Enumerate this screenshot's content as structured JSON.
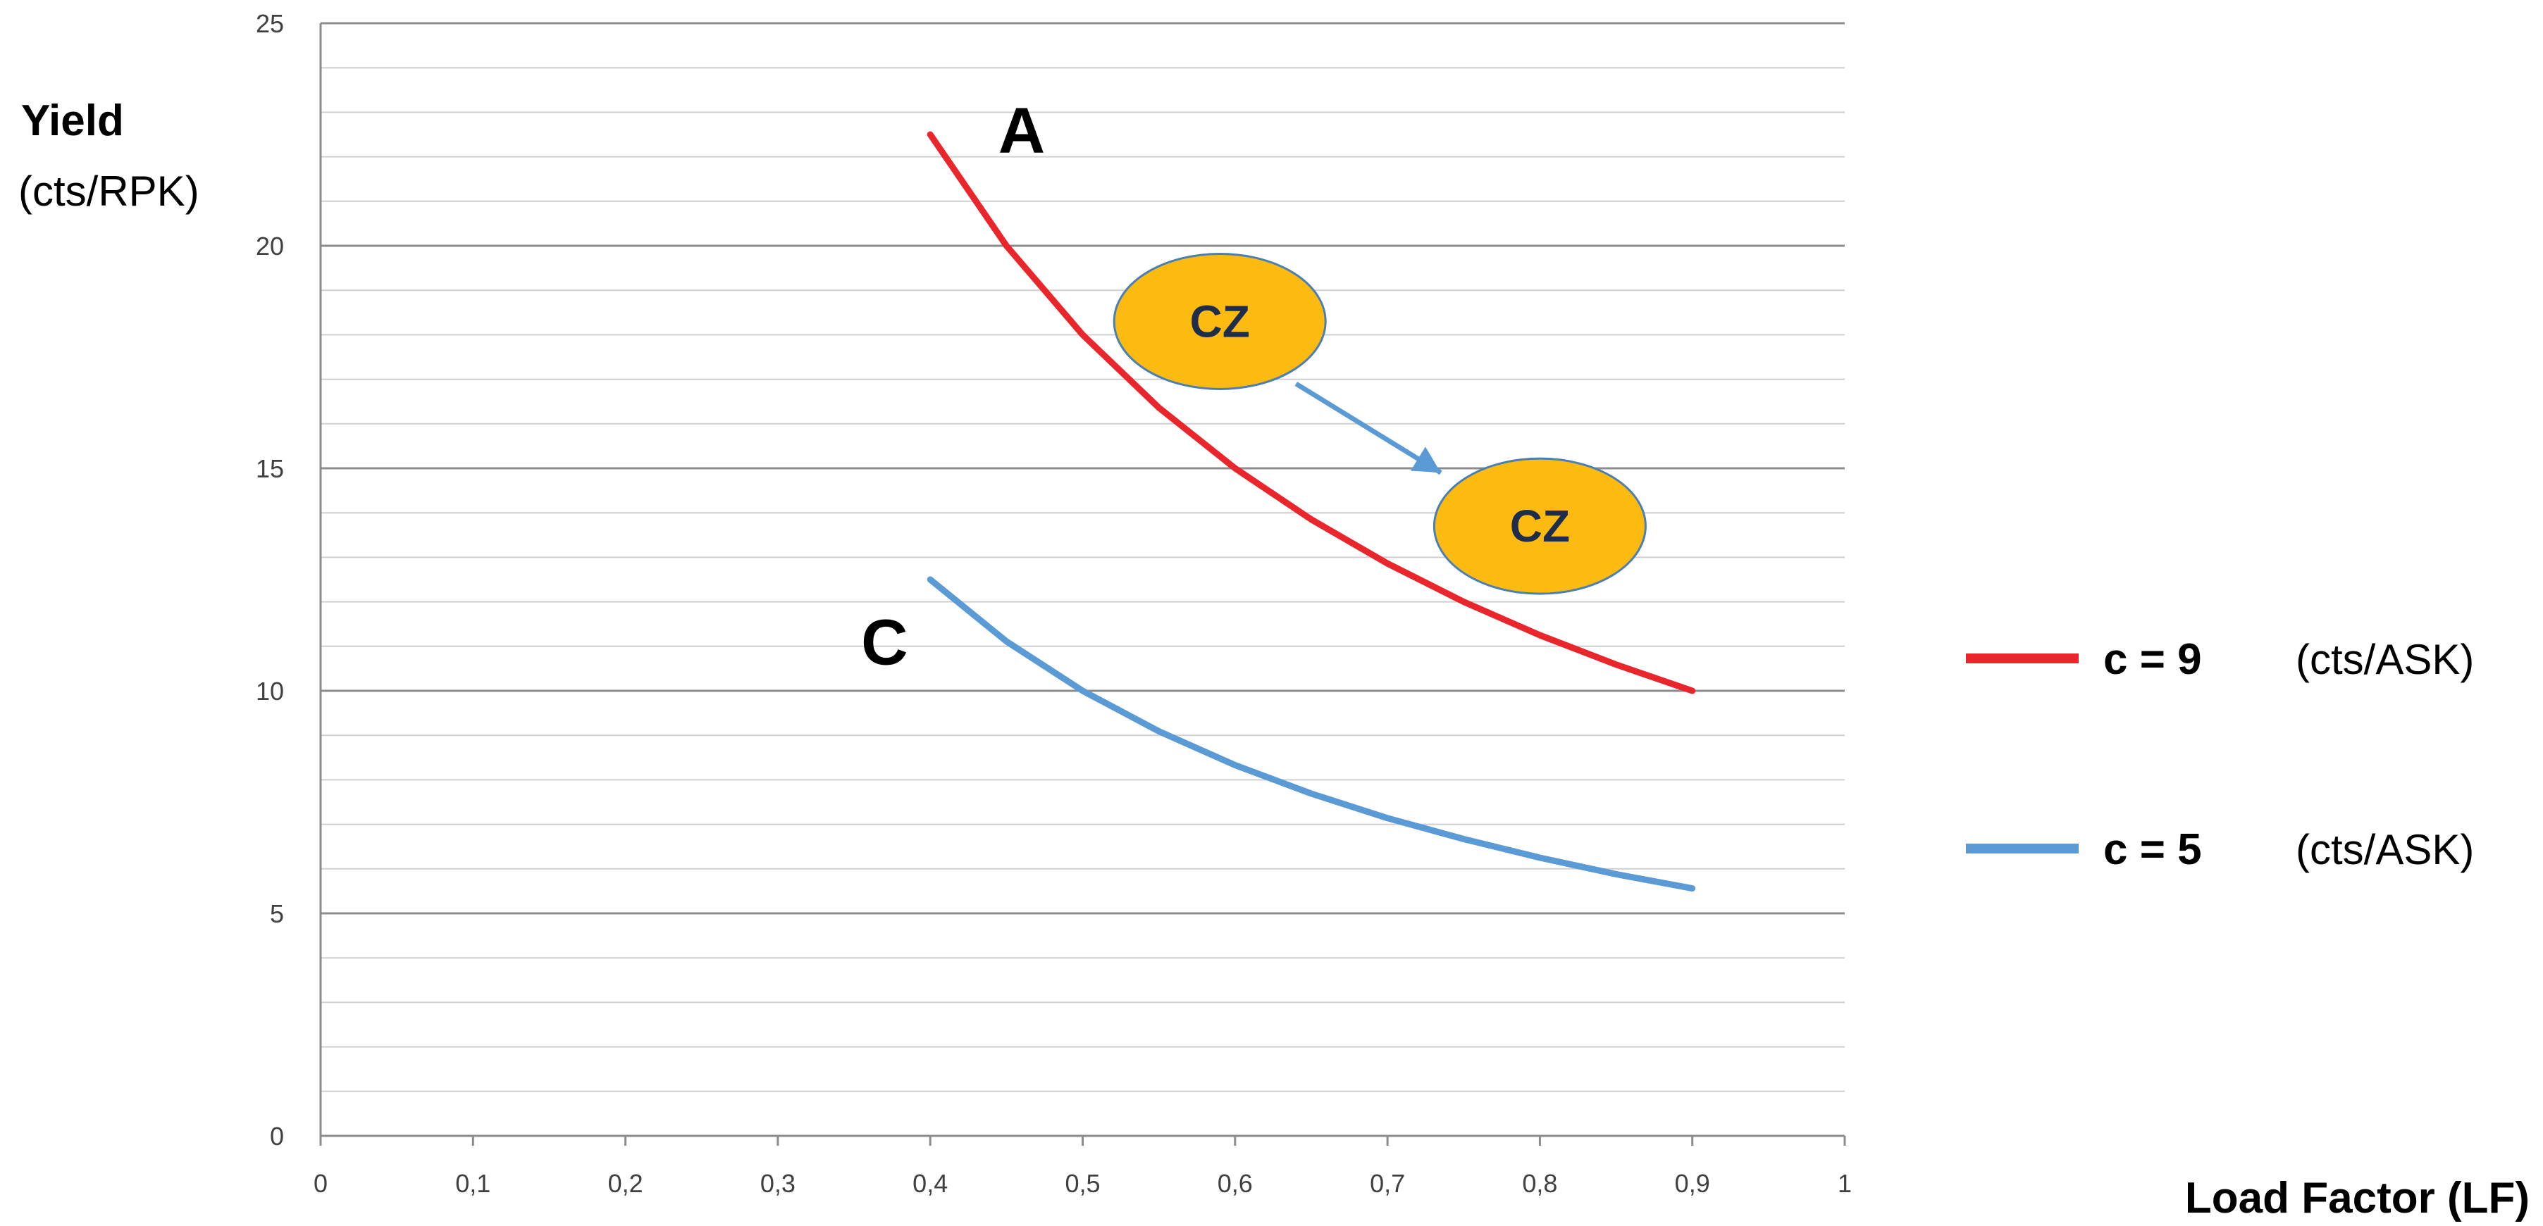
{
  "chart_data": {
    "type": "line",
    "title": "",
    "ylabel": "Yield",
    "ylabel_unit": "(cts/RPK)",
    "xlabel": "Load Factor (LF)",
    "xlim": [
      0,
      1
    ],
    "ylim": [
      0,
      25
    ],
    "x_ticks": [
      "0",
      "0,1",
      "0,2",
      "0,3",
      "0,4",
      "0,5",
      "0,6",
      "0,7",
      "0,8",
      "0,9",
      "1"
    ],
    "y_ticks": [
      "0",
      "5",
      "10",
      "15",
      "20",
      "25"
    ],
    "grid": "horizontal, minor every 1, major every 5",
    "legend_position": "right",
    "series": [
      {
        "name": "c = 9",
        "name_unit": "(cts/ASK)",
        "color": "#e8262b",
        "x": [
          0.4,
          0.45,
          0.5,
          0.55,
          0.6,
          0.65,
          0.7,
          0.75,
          0.8,
          0.85,
          0.9
        ],
        "y": [
          22.5,
          20.0,
          18.0,
          16.36,
          15.0,
          13.85,
          12.86,
          12.0,
          11.25,
          10.59,
          10.0
        ]
      },
      {
        "name": "c = 5",
        "name_unit": "(cts/ASK)",
        "color": "#5b9bd5",
        "x": [
          0.4,
          0.45,
          0.5,
          0.55,
          0.6,
          0.65,
          0.7,
          0.75,
          0.8,
          0.85,
          0.9
        ],
        "y": [
          12.5,
          11.11,
          10.0,
          9.09,
          8.33,
          7.69,
          7.14,
          6.67,
          6.25,
          5.88,
          5.56
        ]
      }
    ],
    "annotations": [
      {
        "text": "A",
        "x": 0.46,
        "y": 22.6
      },
      {
        "text": "C",
        "x": 0.37,
        "y": 11.1
      }
    ],
    "zones": [
      {
        "text": "CZ",
        "x": 0.59,
        "y": 18.3,
        "color": "#fdbb12"
      },
      {
        "text": "CZ",
        "x": 0.8,
        "y": 13.7,
        "color": "#fdbb12"
      }
    ],
    "arrow": {
      "from": [
        0.64,
        16.9
      ],
      "to": [
        0.735,
        14.9
      ],
      "color": "#5b9bd5"
    }
  }
}
